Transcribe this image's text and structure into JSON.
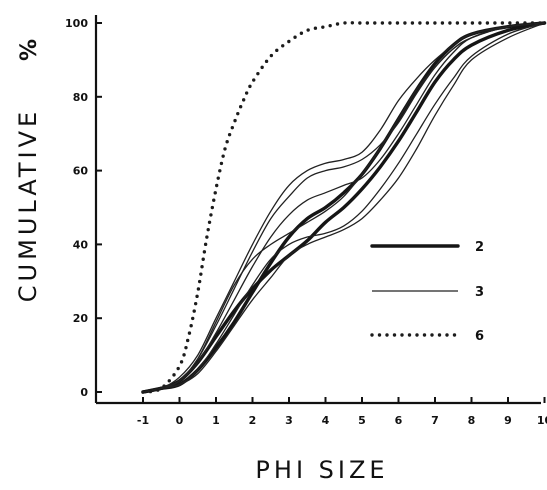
{
  "chart_data": {
    "type": "line",
    "xlabel": "PHI SIZE",
    "ylabel": "CUMULATIVE",
    "ylabel_unit": "%",
    "xlim": [
      -1,
      10
    ],
    "ylim": [
      0,
      100
    ],
    "x_ticks": [
      -1,
      0,
      1,
      2,
      3,
      4,
      5,
      6,
      7,
      8,
      9,
      10
    ],
    "y_ticks": [
      0,
      20,
      40,
      60,
      80,
      100
    ],
    "grid": false,
    "legend_position": "right-middle",
    "legend": [
      {
        "label": "2",
        "style": "thick"
      },
      {
        "label": "3",
        "style": "thin"
      },
      {
        "label": "6",
        "style": "dotted"
      }
    ],
    "series": [
      {
        "legend_ref": "2",
        "style": "thick",
        "x": [
          -1,
          -0.5,
          0,
          0.5,
          1,
          1.5,
          2,
          2.5,
          3,
          3.5,
          4,
          4.5,
          5,
          5.5,
          6,
          6.5,
          7,
          7.5,
          8,
          9,
          10
        ],
        "y": [
          0,
          1,
          3,
          8,
          15,
          22,
          28,
          33,
          37,
          41,
          46,
          50,
          55,
          61,
          68,
          76,
          84,
          90,
          94,
          98,
          100
        ]
      },
      {
        "legend_ref": "2",
        "style": "thick",
        "x": [
          -1,
          -0.5,
          0,
          0.5,
          1,
          1.5,
          2,
          2.5,
          3,
          3.5,
          4,
          4.5,
          5,
          5.5,
          6,
          6.5,
          7,
          7.5,
          8,
          9,
          10
        ],
        "y": [
          0,
          1,
          2,
          6,
          12,
          19,
          27,
          35,
          42,
          47,
          50,
          54,
          59,
          66,
          74,
          82,
          89,
          94,
          97,
          99,
          100
        ]
      },
      {
        "legend_ref": "3",
        "style": "thin",
        "x": [
          -1,
          -0.5,
          0,
          0.5,
          1,
          1.5,
          2,
          2.5,
          3,
          3.5,
          4,
          4.5,
          5,
          5.5,
          6,
          6.5,
          7,
          7.5,
          8,
          9,
          10
        ],
        "y": [
          0,
          1,
          3,
          9,
          18,
          28,
          38,
          47,
          53,
          58,
          60,
          61,
          63,
          67,
          73,
          81,
          88,
          93,
          96,
          99,
          100
        ]
      },
      {
        "legend_ref": "3",
        "style": "thin",
        "x": [
          -1,
          -0.5,
          0,
          0.5,
          1,
          1.5,
          2,
          2.5,
          3,
          3.5,
          4,
          4.5,
          5,
          5.5,
          6,
          6.5,
          7,
          7.5,
          8,
          9,
          10
        ],
        "y": [
          0,
          1,
          4,
          10,
          20,
          30,
          40,
          49,
          56,
          60,
          62,
          63,
          65,
          71,
          79,
          85,
          90,
          94,
          97,
          99,
          100
        ]
      },
      {
        "legend_ref": "3",
        "style": "thin",
        "x": [
          -1,
          -0.5,
          0,
          0.5,
          1,
          1.5,
          2,
          2.5,
          3,
          3.5,
          4,
          4.5,
          5,
          5.5,
          6,
          6.5,
          7,
          7.5,
          8,
          9,
          10
        ],
        "y": [
          0,
          1,
          3,
          8,
          16,
          25,
          34,
          42,
          48,
          52,
          54,
          56,
          58,
          63,
          70,
          78,
          86,
          92,
          96,
          99,
          100
        ]
      },
      {
        "legend_ref": "3",
        "style": "thin",
        "x": [
          -1,
          -0.5,
          0,
          0.5,
          1,
          1.5,
          2,
          2.5,
          3,
          3.5,
          4,
          4.5,
          5,
          5.5,
          6,
          6.5,
          7,
          7.5,
          8,
          9,
          10
        ],
        "y": [
          0,
          1,
          2,
          6,
          13,
          21,
          29,
          36,
          40,
          42,
          43,
          45,
          49,
          55,
          62,
          70,
          78,
          85,
          91,
          97,
          100
        ]
      },
      {
        "legend_ref": "3",
        "style": "thin",
        "x": [
          -1,
          -0.5,
          0,
          0.5,
          1,
          1.5,
          2,
          2.5,
          3,
          3.5,
          4,
          4.5,
          5,
          5.5,
          6,
          6.5,
          7,
          7.5,
          8,
          9,
          10
        ],
        "y": [
          0,
          1,
          2,
          5,
          11,
          18,
          25,
          31,
          37,
          40,
          42,
          44,
          47,
          52,
          58,
          66,
          75,
          83,
          90,
          96,
          100
        ]
      },
      {
        "legend_ref": "3",
        "style": "thin",
        "x": [
          -1,
          -0.5,
          0,
          0.5,
          1,
          1.5,
          2,
          2.5,
          3,
          3.5,
          4,
          4.5,
          5,
          5.5,
          6,
          6.5,
          7,
          7.5,
          8,
          9,
          10
        ],
        "y": [
          0,
          1,
          3,
          9,
          19,
          29,
          36,
          40,
          43,
          46,
          49,
          53,
          59,
          66,
          74,
          82,
          88,
          93,
          96,
          99,
          100
        ]
      },
      {
        "legend_ref": "6",
        "style": "dotted",
        "x": [
          -1,
          -0.5,
          0,
          0.25,
          0.5,
          0.75,
          1,
          1.25,
          1.5,
          1.75,
          2,
          2.5,
          3,
          3.5,
          4,
          4.5,
          5,
          6,
          7,
          8,
          9,
          10
        ],
        "y": [
          0,
          1,
          7,
          15,
          27,
          42,
          55,
          66,
          73,
          79,
          84,
          91,
          95,
          98,
          99,
          100,
          100,
          100,
          100,
          100,
          100,
          100
        ]
      }
    ]
  }
}
